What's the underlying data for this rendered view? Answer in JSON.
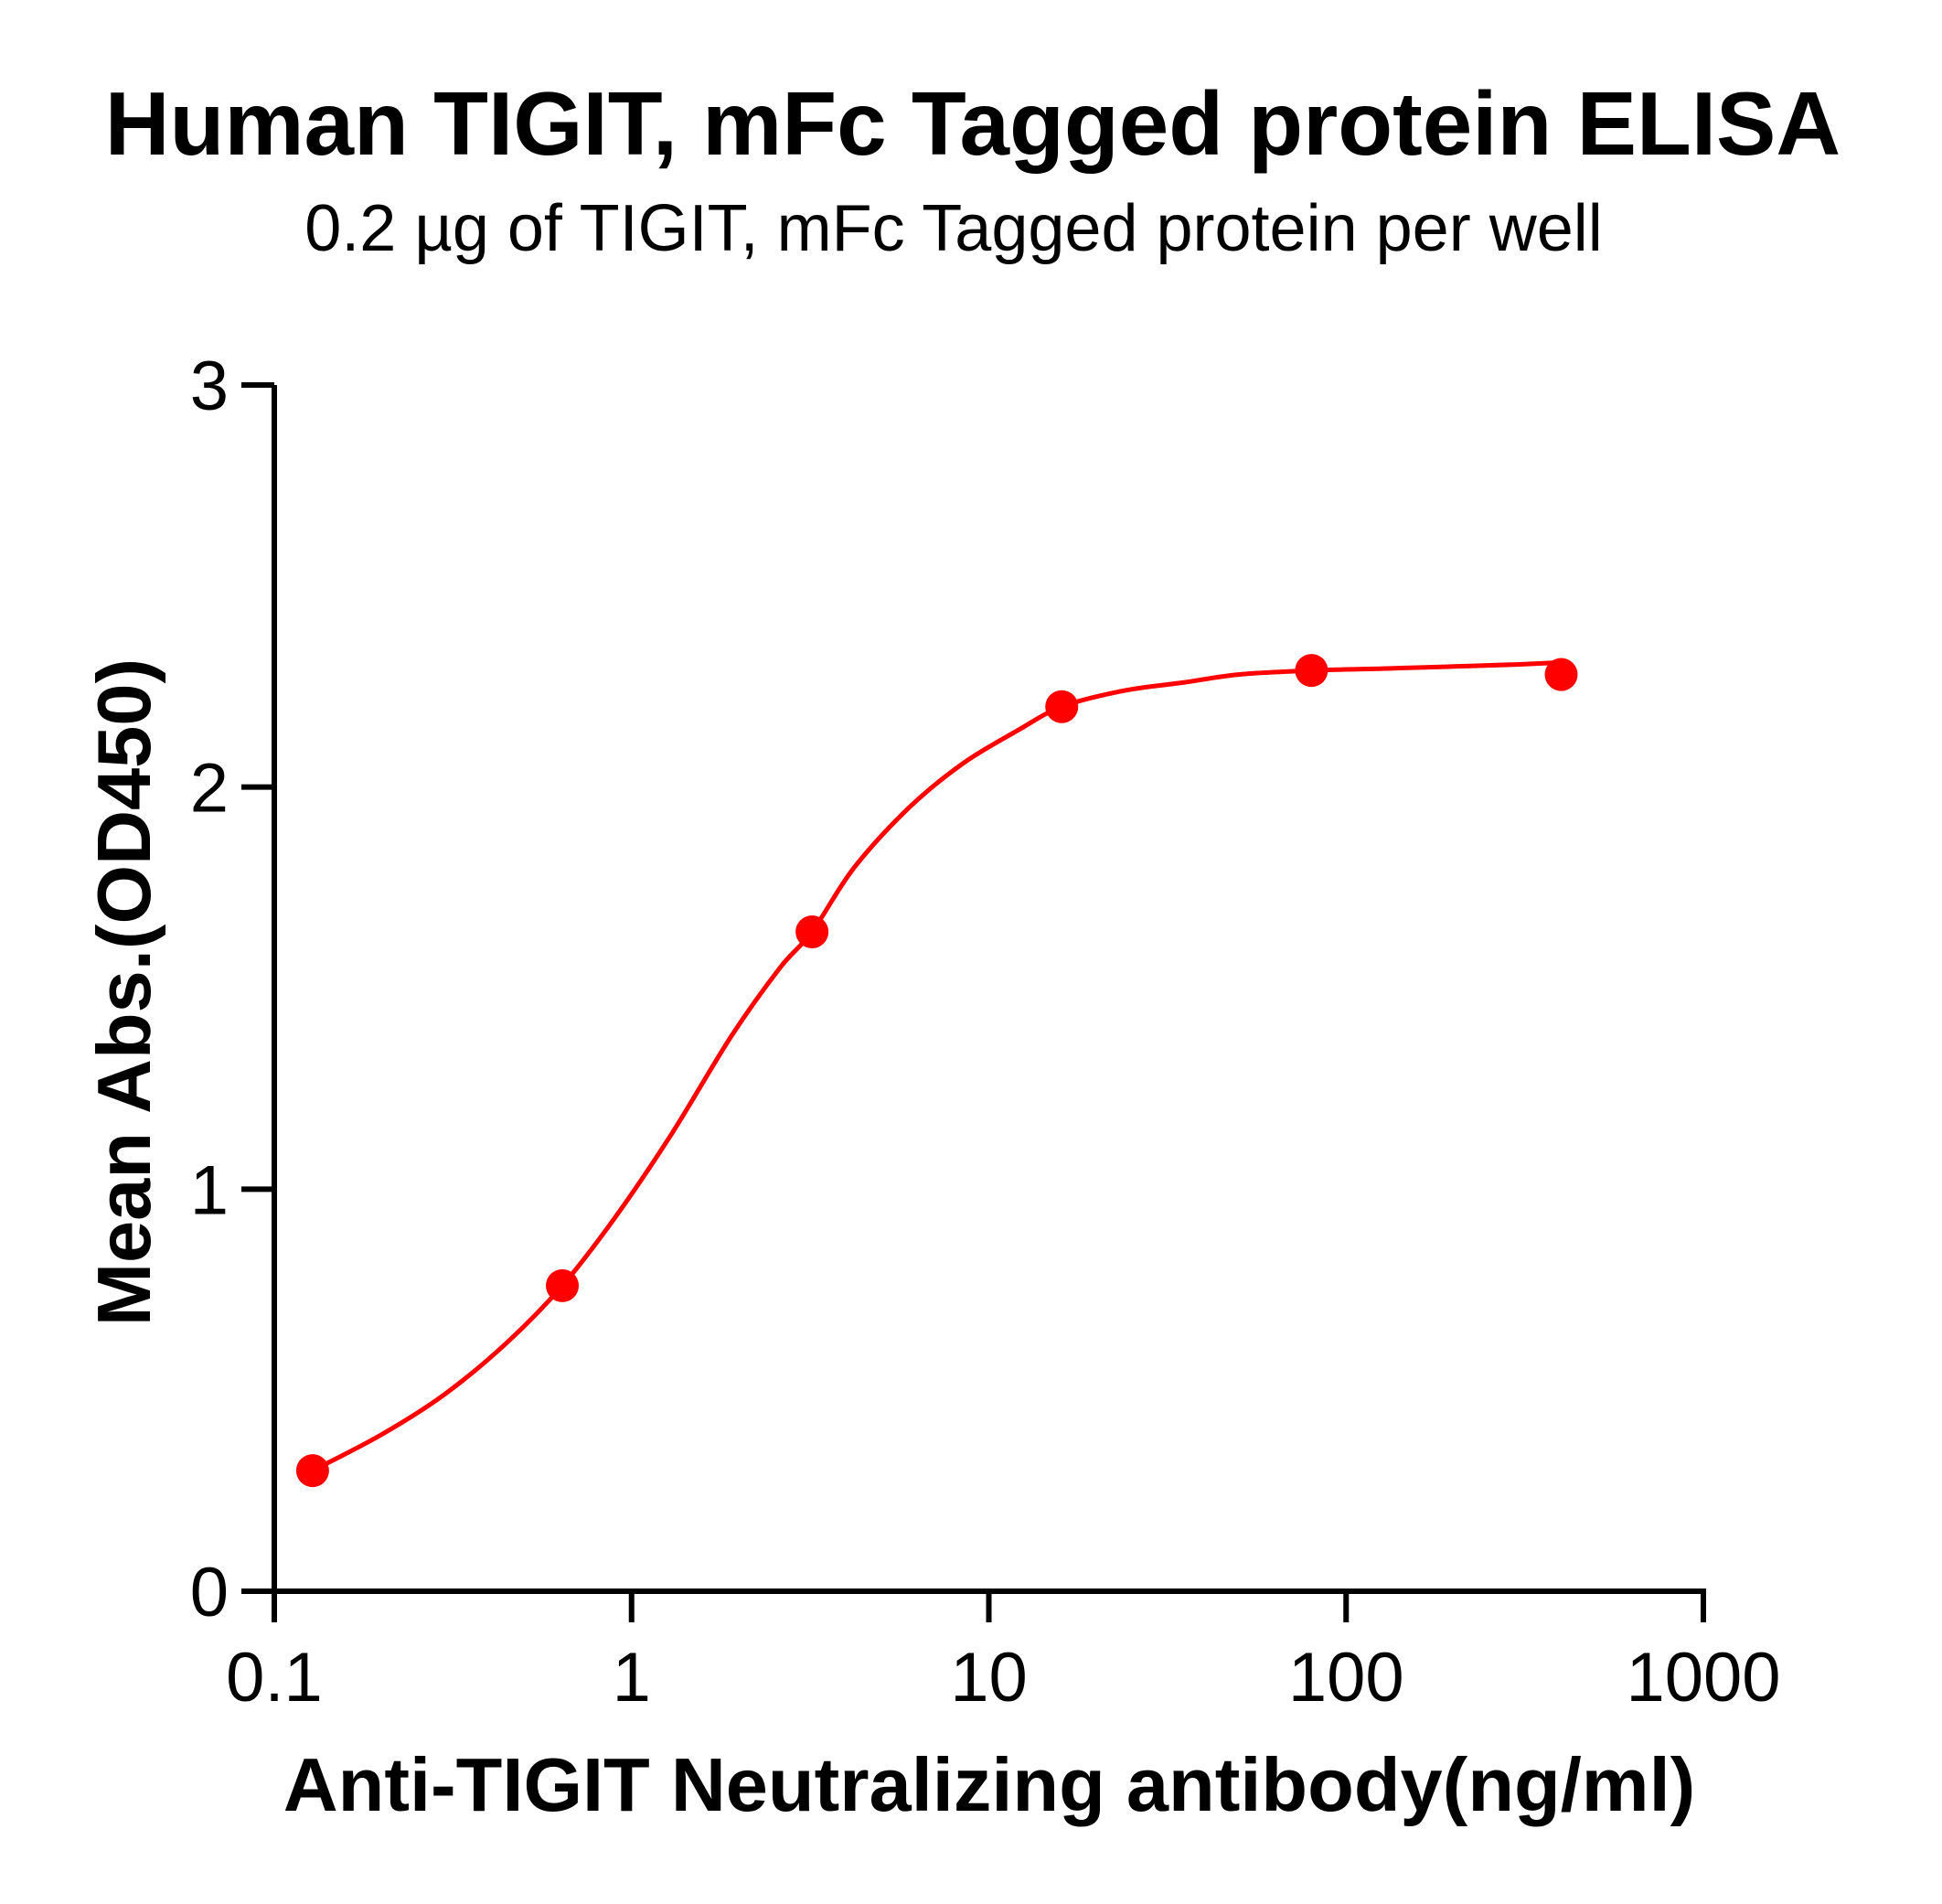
{
  "chart": {
    "title": "Human TIGIT, mFc Tagged protein ELISA",
    "subtitle": "0.2 µg of TIGIT, mFc Tagged protein per well",
    "xlabel": "Anti-TIGIT Neutralizing antibody(ng/ml)",
    "ylabel": "Mean Abs.(OD450)",
    "series_color": "#ff0000",
    "axis_color": "#000000"
  },
  "chart_data": {
    "type": "scatter",
    "title": "Human TIGIT, mFc Tagged protein ELISA",
    "subtitle": "0.2 µg of TIGIT, mFc Tagged protein per well",
    "xlabel": "Anti-TIGIT Neutralizing antibody(ng/ml)",
    "ylabel": "Mean Abs.(OD450)",
    "xscale": "log",
    "xlim": [
      0.1,
      1000
    ],
    "ylim": [
      0,
      3
    ],
    "xticks": [
      0.1,
      1,
      10,
      100,
      1000
    ],
    "xtick_labels": [
      "0.1",
      "1",
      "10",
      "100",
      "1000"
    ],
    "yticks": [
      0,
      1,
      2,
      3
    ],
    "ytick_labels": [
      "0",
      "1",
      "2",
      "3"
    ],
    "grid": false,
    "legend": null,
    "series": [
      {
        "name": "Anti-TIGIT Neutralizing antibody",
        "color": "#ff0000",
        "marker": "circle",
        "x": [
          0.128,
          0.64,
          3.2,
          16,
          80,
          400
        ],
        "y": [
          0.3,
          0.76,
          1.64,
          2.2,
          2.29,
          2.28
        ]
      }
    ],
    "fit_curve": {
      "model": "4PL sigmoidal fit",
      "color": "#ff0000",
      "x": [
        0.128,
        0.2,
        0.3,
        0.45,
        0.64,
        0.9,
        1.3,
        1.9,
        2.6,
        3.2,
        4.2,
        6,
        8.5,
        12,
        16,
        24,
        35,
        50,
        80,
        130,
        200,
        300,
        400
      ],
      "y": [
        0.3,
        0.39,
        0.49,
        0.62,
        0.76,
        0.93,
        1.14,
        1.38,
        1.55,
        1.64,
        1.8,
        1.95,
        2.06,
        2.14,
        2.2,
        2.24,
        2.26,
        2.28,
        2.29,
        2.295,
        2.3,
        2.305,
        2.31
      ]
    }
  }
}
